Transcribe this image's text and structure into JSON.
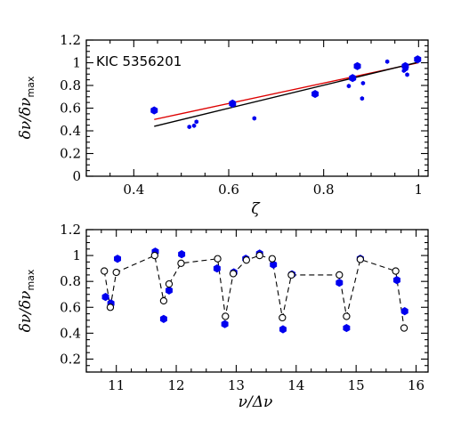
{
  "chart_data": [
    {
      "type": "scatter",
      "annotation": "KIC 5356201",
      "xlabel": "ζ",
      "ylabel": "δν/δν",
      "ylabel_sub": "max",
      "xlim": [
        0.3,
        1.02
      ],
      "ylim": [
        0,
        1.2
      ],
      "xticks": [
        "0.4",
        "0.6",
        "0.8",
        "1"
      ],
      "yticks": [
        "0",
        "0.2",
        "0.4",
        "0.6",
        "0.8",
        "1",
        "1.2"
      ],
      "colors": {
        "points": "#0000ee",
        "fit_red": "#dd0000",
        "fit_black": "#000000"
      },
      "points": [
        {
          "x": 0.443,
          "y": 0.58,
          "size": "large"
        },
        {
          "x": 0.517,
          "y": 0.435,
          "size": "small"
        },
        {
          "x": 0.527,
          "y": 0.445,
          "size": "small"
        },
        {
          "x": 0.532,
          "y": 0.48,
          "size": "small"
        },
        {
          "x": 0.608,
          "y": 0.64,
          "size": "large"
        },
        {
          "x": 0.654,
          "y": 0.51,
          "size": "small"
        },
        {
          "x": 0.782,
          "y": 0.725,
          "size": "large"
        },
        {
          "x": 0.853,
          "y": 0.795,
          "size": "small"
        },
        {
          "x": 0.861,
          "y": 0.865,
          "size": "large"
        },
        {
          "x": 0.871,
          "y": 0.97,
          "size": "large"
        },
        {
          "x": 0.881,
          "y": 0.685,
          "size": "small"
        },
        {
          "x": 0.883,
          "y": 0.82,
          "size": "small"
        },
        {
          "x": 0.934,
          "y": 1.01,
          "size": "small"
        },
        {
          "x": 0.969,
          "y": 0.93,
          "size": "small"
        },
        {
          "x": 0.972,
          "y": 0.97,
          "size": "large"
        },
        {
          "x": 0.974,
          "y": 0.945,
          "size": "small"
        },
        {
          "x": 0.976,
          "y": 0.895,
          "size": "small"
        },
        {
          "x": 0.998,
          "y": 1.03,
          "size": "large"
        }
      ],
      "fits": [
        {
          "color": "#dd0000",
          "x": [
            0.443,
            1.0
          ],
          "y": [
            0.5,
            1.0
          ]
        },
        {
          "color": "#000000",
          "x": [
            0.443,
            1.0
          ],
          "y": [
            0.44,
            1.005
          ]
        }
      ]
    },
    {
      "type": "scatter",
      "xlabel": "ν/Δν",
      "ylabel": "δν/δν",
      "ylabel_sub": "max",
      "xlim": [
        10.5,
        16.2
      ],
      "ylim": [
        0.1,
        1.2
      ],
      "xticks": [
        "11",
        "12",
        "13",
        "14",
        "15",
        "16"
      ],
      "yticks": [
        "0.2",
        "0.4",
        "0.6",
        "0.8",
        "1",
        "1.2"
      ],
      "colors": {
        "observed": "#0000ee",
        "model": "#000000"
      },
      "observed": [
        {
          "x": 10.82,
          "y": 0.68,
          "size": "large"
        },
        {
          "x": 10.91,
          "y": 0.63,
          "size": "large"
        },
        {
          "x": 11.02,
          "y": 0.975,
          "size": "large"
        },
        {
          "x": 11.65,
          "y": 1.03,
          "size": "large"
        },
        {
          "x": 11.79,
          "y": 0.51,
          "size": "large"
        },
        {
          "x": 11.88,
          "y": 0.73,
          "size": "large"
        },
        {
          "x": 12.09,
          "y": 1.01,
          "size": "large"
        },
        {
          "x": 12.68,
          "y": 0.9,
          "size": "large"
        },
        {
          "x": 12.81,
          "y": 0.47,
          "size": "large"
        },
        {
          "x": 12.96,
          "y": 0.87,
          "size": "large"
        },
        {
          "x": 13.16,
          "y": 0.975,
          "size": "large"
        },
        {
          "x": 13.39,
          "y": 1.015,
          "size": "large"
        },
        {
          "x": 13.62,
          "y": 0.93,
          "size": "large"
        },
        {
          "x": 13.78,
          "y": 0.43,
          "size": "large"
        },
        {
          "x": 13.93,
          "y": 0.855,
          "size": "large"
        },
        {
          "x": 14.72,
          "y": 0.79,
          "size": "large"
        },
        {
          "x": 14.84,
          "y": 0.44,
          "size": "large"
        },
        {
          "x": 15.07,
          "y": 0.975,
          "size": "large"
        },
        {
          "x": 15.68,
          "y": 0.81,
          "size": "large"
        },
        {
          "x": 15.81,
          "y": 0.57,
          "size": "large"
        }
      ],
      "model": [
        {
          "x": 10.8,
          "y": 0.88
        },
        {
          "x": 10.9,
          "y": 0.6
        },
        {
          "x": 11.0,
          "y": 0.87
        },
        {
          "x": 11.64,
          "y": 1.0
        },
        {
          "x": 11.79,
          "y": 0.65
        },
        {
          "x": 11.88,
          "y": 0.78
        },
        {
          "x": 12.08,
          "y": 0.94
        },
        {
          "x": 12.69,
          "y": 0.975
        },
        {
          "x": 12.82,
          "y": 0.53
        },
        {
          "x": 12.95,
          "y": 0.86
        },
        {
          "x": 13.17,
          "y": 0.965
        },
        {
          "x": 13.39,
          "y": 1.0
        },
        {
          "x": 13.6,
          "y": 0.975
        },
        {
          "x": 13.77,
          "y": 0.52
        },
        {
          "x": 13.92,
          "y": 0.85
        },
        {
          "x": 14.72,
          "y": 0.85
        },
        {
          "x": 14.84,
          "y": 0.53
        },
        {
          "x": 15.07,
          "y": 0.97
        },
        {
          "x": 15.66,
          "y": 0.88
        },
        {
          "x": 15.8,
          "y": 0.44
        }
      ]
    }
  ]
}
